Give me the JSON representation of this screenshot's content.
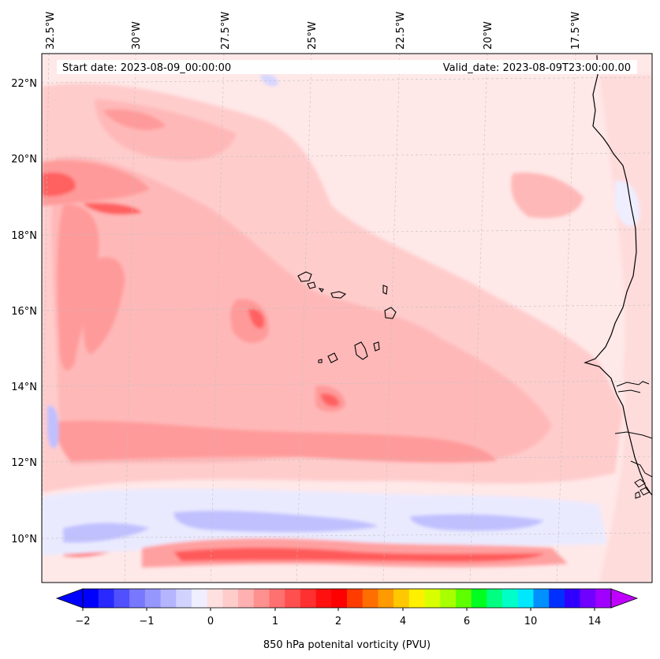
{
  "map": {
    "lon_labels": [
      "32.5°W",
      "30°W",
      "27.5°W",
      "25°W",
      "22.5°W",
      "20°W",
      "17.5°W"
    ],
    "lat_labels": [
      "22°N",
      "20°N",
      "18°N",
      "16°N",
      "14°N",
      "12°N",
      "10°N"
    ],
    "start_date": "Start date: 2023-08-09_00:00:00",
    "valid_date": "Valid_date: 2023-08-09T23:00:00.00",
    "field_colors": {
      "background": "#ffe8e8",
      "light_pink": "#ffd2d2",
      "pink": "#ffb4b4",
      "salmon": "#ff8c8c",
      "red": "#ff5050",
      "bright_red": "#ff1e1e",
      "light_blue": "#e6e6ff",
      "blue": "#b4b4ff",
      "deep_blue": "#6e6eff",
      "coast": "#000000"
    }
  },
  "colorbar": {
    "title": "850 hPa potenital vorticity (PVU)",
    "tick_labels": [
      "−2",
      "−1",
      "0",
      "1",
      "2",
      "4",
      "6",
      "10",
      "14"
    ],
    "colors": [
      "#0000ff",
      "#2828ff",
      "#5050ff",
      "#7878ff",
      "#9696ff",
      "#b4b4ff",
      "#d2d2ff",
      "#eeeeff",
      "#ffe0e0",
      "#ffcccc",
      "#ffb0b0",
      "#ff9090",
      "#ff7070",
      "#ff5050",
      "#ff3030",
      "#ff1010",
      "#ff0000",
      "#ff3c00",
      "#ff6e00",
      "#ff9a00",
      "#ffc800",
      "#fff000",
      "#d8ff00",
      "#a8ff00",
      "#60ff00",
      "#00ff20",
      "#00ff80",
      "#00ffc8",
      "#00e8ff",
      "#0090ff",
      "#0030ff",
      "#3000ff",
      "#7000ff",
      "#a000ff"
    ],
    "left_extend_color": "#0000ff",
    "right_extend_color": "#c000ff"
  }
}
